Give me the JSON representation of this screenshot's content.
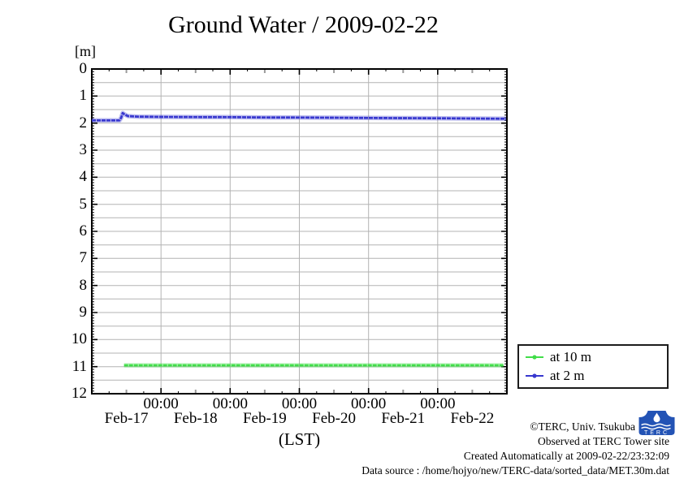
{
  "title": "Ground Water / 2009-02-22",
  "chart_data": {
    "type": "line",
    "title": "Ground Water / 2009-02-22",
    "ylabel": "[m]",
    "xlabel": "(LST)",
    "y_axis": {
      "min": 0,
      "max": 12,
      "inverted": true,
      "major_tick_step": 1,
      "minor_tick_step": 0.1,
      "tick_labels": [
        "0",
        "1",
        "2",
        "3",
        "4",
        "5",
        "6",
        "7",
        "8",
        "9",
        "10",
        "11",
        "12"
      ]
    },
    "x_axis": {
      "span_hours": 144,
      "start": "Feb-17 00:00",
      "end": "Feb-23 00:00",
      "major_ticks_hours": [
        24,
        48,
        72,
        96,
        120
      ],
      "major_tick_label": "00:00",
      "minor_tick_step_hours": 6,
      "noon_tick_hours": [
        12,
        36,
        60,
        84,
        108,
        132
      ],
      "day_labels": [
        "Feb-17",
        "Feb-18",
        "Feb-19",
        "Feb-20",
        "Feb-21",
        "Feb-22"
      ],
      "day_label_hours": [
        12,
        36,
        60,
        84,
        108,
        132
      ]
    },
    "grid": {
      "color": "#b3b3b3",
      "horizontal_step": 0.5,
      "vertical_at_major_ticks": true
    },
    "series": [
      {
        "name": "at 10 m",
        "color": "#41dd49",
        "points": [
          [
            11.2,
            10.95
          ],
          [
            142.8,
            10.95
          ]
        ]
      },
      {
        "name": "at 2 m",
        "color": "#3838cf",
        "points": [
          [
            0,
            1.9
          ],
          [
            9.6,
            1.9
          ],
          [
            10.2,
            1.8
          ],
          [
            10.7,
            1.63
          ],
          [
            11.3,
            1.67
          ],
          [
            12.5,
            1.74
          ],
          [
            16,
            1.76
          ],
          [
            24,
            1.77
          ],
          [
            36,
            1.775
          ],
          [
            48,
            1.78
          ],
          [
            60,
            1.79
          ],
          [
            72,
            1.795
          ],
          [
            84,
            1.8
          ],
          [
            96,
            1.81
          ],
          [
            108,
            1.815
          ],
          [
            120,
            1.82
          ],
          [
            132,
            1.83
          ],
          [
            143.7,
            1.84
          ]
        ]
      }
    ],
    "legend": {
      "position": "outside-right-bottom",
      "entries": [
        {
          "label": "at 10 m"
        },
        {
          "label": "at 2 m"
        }
      ]
    }
  },
  "footer": {
    "copyright": "©TERC, Univ. Tsukuba",
    "observed": "Observed at TERC Tower site",
    "created": "Created Automatically at 2009-02-22/23:32:09",
    "source": "Data source : /home/hojyo/new/TERC-data/sorted_data/MET.30m.dat"
  },
  "logo": {
    "text": "TERC",
    "color": "#2353b5"
  }
}
